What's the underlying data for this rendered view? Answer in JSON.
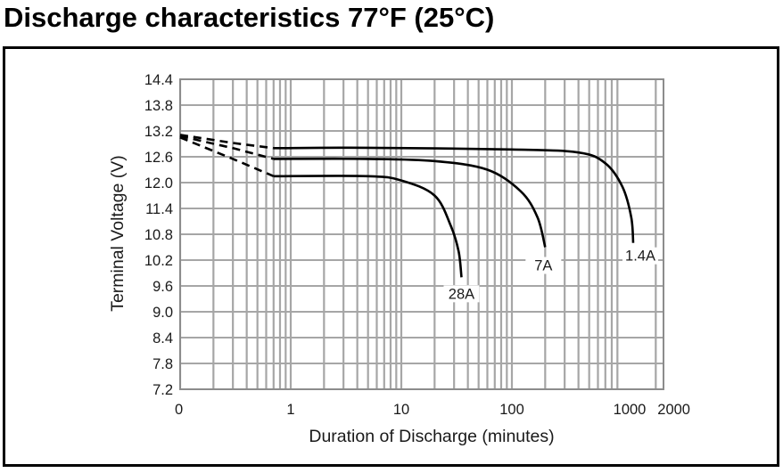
{
  "title": "Discharge characteristics 77°F (25°C)",
  "chart_data": {
    "type": "line",
    "title": "Discharge characteristics 77°F (25°C)",
    "xlabel": "Duration of Discharge (minutes)",
    "ylabel": "Terminal Voltage (V)",
    "xscale": "log",
    "xlim": [
      0.1,
      2000
    ],
    "ylim": [
      7.2,
      14.4
    ],
    "grid": true,
    "x_tick_labels": [
      "0",
      "1",
      "10",
      "100",
      "1000",
      "2000"
    ],
    "y_ticks": [
      14.4,
      13.8,
      13.2,
      12.6,
      12.0,
      11.4,
      10.8,
      10.2,
      9.6,
      9.0,
      8.4,
      7.8,
      7.2
    ],
    "y_tick_labels": [
      "14.4",
      "13.8",
      "13.2",
      "12.6",
      "12.0",
      "11.4",
      "10.8",
      "10.2",
      "9.6",
      "9.0",
      "8.4",
      "7.8",
      "7.2"
    ],
    "series": [
      {
        "name": "1.4A",
        "dashed": [
          [
            0.1,
            13.11
          ],
          [
            0.3,
            12.92
          ],
          [
            0.7,
            12.8
          ]
        ],
        "values": [
          [
            0.7,
            12.8
          ],
          [
            5,
            12.81
          ],
          [
            100,
            12.77
          ],
          [
            400,
            12.7
          ],
          [
            700,
            12.45
          ],
          [
            1000,
            11.9
          ],
          [
            1200,
            11.2
          ],
          [
            1250,
            10.6
          ]
        ]
      },
      {
        "name": "7A",
        "dashed": [
          [
            0.1,
            13.08
          ],
          [
            0.3,
            12.8
          ],
          [
            0.7,
            12.55
          ]
        ],
        "values": [
          [
            0.7,
            12.55
          ],
          [
            5,
            12.55
          ],
          [
            20,
            12.5
          ],
          [
            60,
            12.3
          ],
          [
            120,
            11.8
          ],
          [
            170,
            11.2
          ],
          [
            200,
            10.5
          ]
        ]
      },
      {
        "name": "28A",
        "dashed": [
          [
            0.1,
            13.05
          ],
          [
            0.3,
            12.55
          ],
          [
            0.7,
            12.15
          ]
        ],
        "values": [
          [
            0.7,
            12.15
          ],
          [
            5,
            12.15
          ],
          [
            10,
            12.05
          ],
          [
            20,
            11.7
          ],
          [
            28,
            11.0
          ],
          [
            33,
            10.4
          ],
          [
            35,
            9.8
          ]
        ]
      }
    ]
  }
}
